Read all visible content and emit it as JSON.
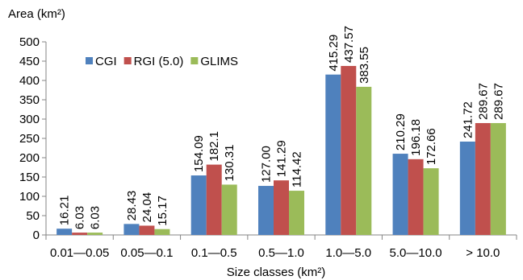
{
  "chart_data": {
    "type": "bar",
    "ylabel": "Area (km²)",
    "xlabel": "Size classes (km²)",
    "ylim": [
      0,
      500
    ],
    "yticks": [
      "0",
      "50",
      "100",
      "150",
      "200",
      "250",
      "300",
      "350",
      "400",
      "450",
      "500"
    ],
    "categories": [
      "0.01—0.05",
      "0.05—0.1",
      "0.1—0.5",
      "0.5—1.0",
      "1.0—5.0",
      "5.0—10.0",
      "> 10.0"
    ],
    "legend_position": "top-left",
    "grid": false,
    "series": [
      {
        "name": "CGI",
        "color": "#4F81BD",
        "values": [
          16.21,
          28.43,
          154.09,
          127.0,
          415.29,
          210.29,
          241.72
        ],
        "labels": [
          "16.21",
          "28.43",
          "154.09",
          "127.00",
          "415.29",
          "210.29",
          "241.72"
        ]
      },
      {
        "name": "RGI (5.0)",
        "color": "#C0504D",
        "values": [
          6.03,
          24.04,
          182.1,
          141.29,
          437.57,
          196.18,
          289.67
        ],
        "labels": [
          "6.03",
          "24.04",
          "182.1",
          "141.29",
          "437.57",
          "196.18",
          "289.67"
        ]
      },
      {
        "name": "GLIMS",
        "color": "#9BBB59",
        "values": [
          6.03,
          15.17,
          130.31,
          114.42,
          383.55,
          172.66,
          289.67
        ],
        "labels": [
          "6.03",
          "15.17",
          "130.31",
          "114.42",
          "383.55",
          "172.66",
          "289.67"
        ]
      }
    ]
  }
}
